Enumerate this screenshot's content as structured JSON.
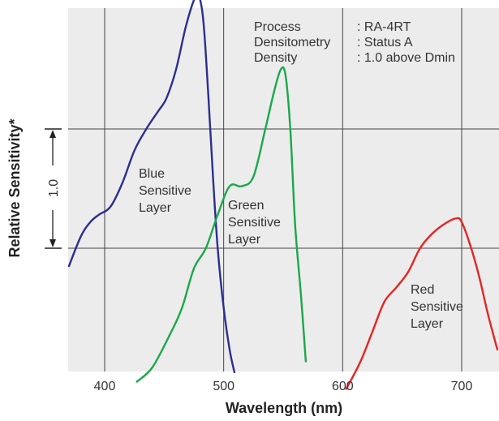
{
  "chart_data": {
    "type": "line",
    "title": "",
    "xlabel": "Wavelength (nm)",
    "ylabel": "Relative Sensitivity*",
    "xlim": [
      370,
      730
    ],
    "x_ticks": [
      "400",
      "500",
      "600",
      "700"
    ],
    "y_scale_label": "1.0",
    "grid": true,
    "background": "#ececec",
    "annotation": {
      "rows": [
        {
          "key": "Process",
          "value": ": RA-4RT"
        },
        {
          "key": "Densitometry",
          "value": ": Status A"
        },
        {
          "key": "Density",
          "value": ": 1.0 above Dmin"
        }
      ]
    },
    "series": [
      {
        "name": "Blue Sensitive Layer",
        "label_lines": [
          "Blue",
          "Sensitive",
          "Layer"
        ],
        "color": "#2b2f8f",
        "x": [
          370,
          380,
          388,
          395,
          405,
          415,
          425,
          435,
          445,
          452,
          460,
          468,
          475,
          479,
          483,
          487,
          491,
          495,
          500,
          505,
          509
        ],
        "y": [
          -0.15,
          0.1,
          0.22,
          0.28,
          0.35,
          0.55,
          0.82,
          1.0,
          1.15,
          1.26,
          1.5,
          1.85,
          2.08,
          2.12,
          1.9,
          1.3,
          0.6,
          0.0,
          -0.5,
          -0.85,
          -1.04
        ]
      },
      {
        "name": "Green Sensitive Layer",
        "label_lines": [
          "Green",
          "Sensitive",
          "Layer"
        ],
        "color": "#1aa84a",
        "x": [
          427,
          440,
          455,
          465,
          475,
          485,
          495,
          505,
          515,
          525,
          535,
          542,
          548,
          552,
          556,
          560,
          565,
          569
        ],
        "y": [
          -1.12,
          -1.0,
          -0.72,
          -0.5,
          -0.17,
          0.0,
          0.28,
          0.52,
          0.52,
          0.6,
          1.0,
          1.3,
          1.5,
          1.45,
          1.0,
          0.2,
          -0.4,
          -0.95
        ]
      },
      {
        "name": "Red Sensitive Layer",
        "label_lines": [
          "Red",
          "Sensitive",
          "Layer"
        ],
        "color": "#e52425",
        "x": [
          603,
          615,
          625,
          635,
          645,
          655,
          665,
          675,
          685,
          695,
          700,
          708,
          715,
          722,
          730
        ],
        "y": [
          -1.18,
          -0.95,
          -0.7,
          -0.45,
          -0.33,
          -0.2,
          0.0,
          0.12,
          0.2,
          0.25,
          0.22,
          0.0,
          -0.25,
          -0.55,
          -0.85
        ]
      }
    ]
  }
}
